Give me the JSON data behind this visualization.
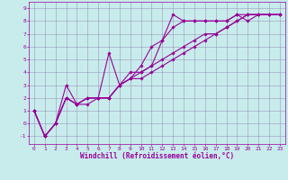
{
  "xlabel": "Windchill (Refroidissement éolien,°C)",
  "bg_color": "#c8ecec",
  "line_color": "#990099",
  "xlim": [
    -0.5,
    23.5
  ],
  "ylim": [
    -1.6,
    9.5
  ],
  "xticks": [
    0,
    1,
    2,
    3,
    4,
    5,
    6,
    7,
    8,
    9,
    10,
    11,
    12,
    13,
    14,
    15,
    16,
    17,
    18,
    19,
    20,
    21,
    22,
    23
  ],
  "yticks": [
    -1,
    0,
    1,
    2,
    3,
    4,
    5,
    6,
    7,
    8,
    9
  ],
  "series": [
    {
      "x": [
        0,
        1,
        2,
        3,
        4,
        5,
        6,
        7,
        8,
        9,
        10,
        11,
        12,
        13,
        14,
        15,
        16,
        17,
        18,
        19,
        20,
        21,
        22,
        23
      ],
      "y": [
        1,
        -1,
        0,
        2,
        1.5,
        2,
        2,
        2,
        3,
        3.5,
        4,
        4.5,
        6.5,
        8.5,
        8,
        8,
        8,
        8,
        8,
        8.5,
        8,
        8.5,
        8.5,
        8.5
      ]
    },
    {
      "x": [
        0,
        1,
        2,
        3,
        4,
        5,
        6,
        7,
        8,
        9,
        10,
        11,
        12,
        13,
        14,
        15,
        16,
        17,
        18,
        19,
        20,
        21,
        22,
        23
      ],
      "y": [
        1,
        -1,
        0,
        3,
        1.5,
        1.5,
        2,
        5.5,
        3,
        3.5,
        4.5,
        6,
        6.5,
        7.5,
        8,
        8,
        8,
        8,
        8,
        8.5,
        8.5,
        8.5,
        8.5,
        8.5
      ]
    },
    {
      "x": [
        0,
        1,
        2,
        3,
        4,
        5,
        6,
        7,
        8,
        9,
        10,
        11,
        12,
        13,
        14,
        15,
        16,
        17,
        18,
        19,
        20,
        21,
        22,
        23
      ],
      "y": [
        1,
        -1,
        0,
        2,
        1.5,
        2,
        2,
        2,
        3,
        4,
        4,
        4.5,
        5,
        5.5,
        6,
        6.5,
        7,
        7,
        7.5,
        8,
        8.5,
        8.5,
        8.5,
        8.5
      ]
    },
    {
      "x": [
        0,
        1,
        2,
        3,
        4,
        5,
        6,
        7,
        8,
        9,
        10,
        11,
        12,
        13,
        14,
        15,
        16,
        17,
        18,
        19,
        20,
        21,
        22,
        23
      ],
      "y": [
        1,
        -1,
        0,
        2,
        1.5,
        2,
        2,
        2,
        3,
        3.5,
        3.5,
        4,
        4.5,
        5,
        5.5,
        6,
        6.5,
        7,
        7.5,
        8,
        8.5,
        8.5,
        8.5,
        8.5
      ]
    }
  ],
  "marker": "D",
  "markersize": 1.8,
  "linewidth": 0.8,
  "grid_color": "#9999bb",
  "tick_color": "#990099",
  "label_color": "#990099",
  "tick_fontsize": 4.5,
  "label_fontsize": 5.5,
  "spine_color": "#990099"
}
